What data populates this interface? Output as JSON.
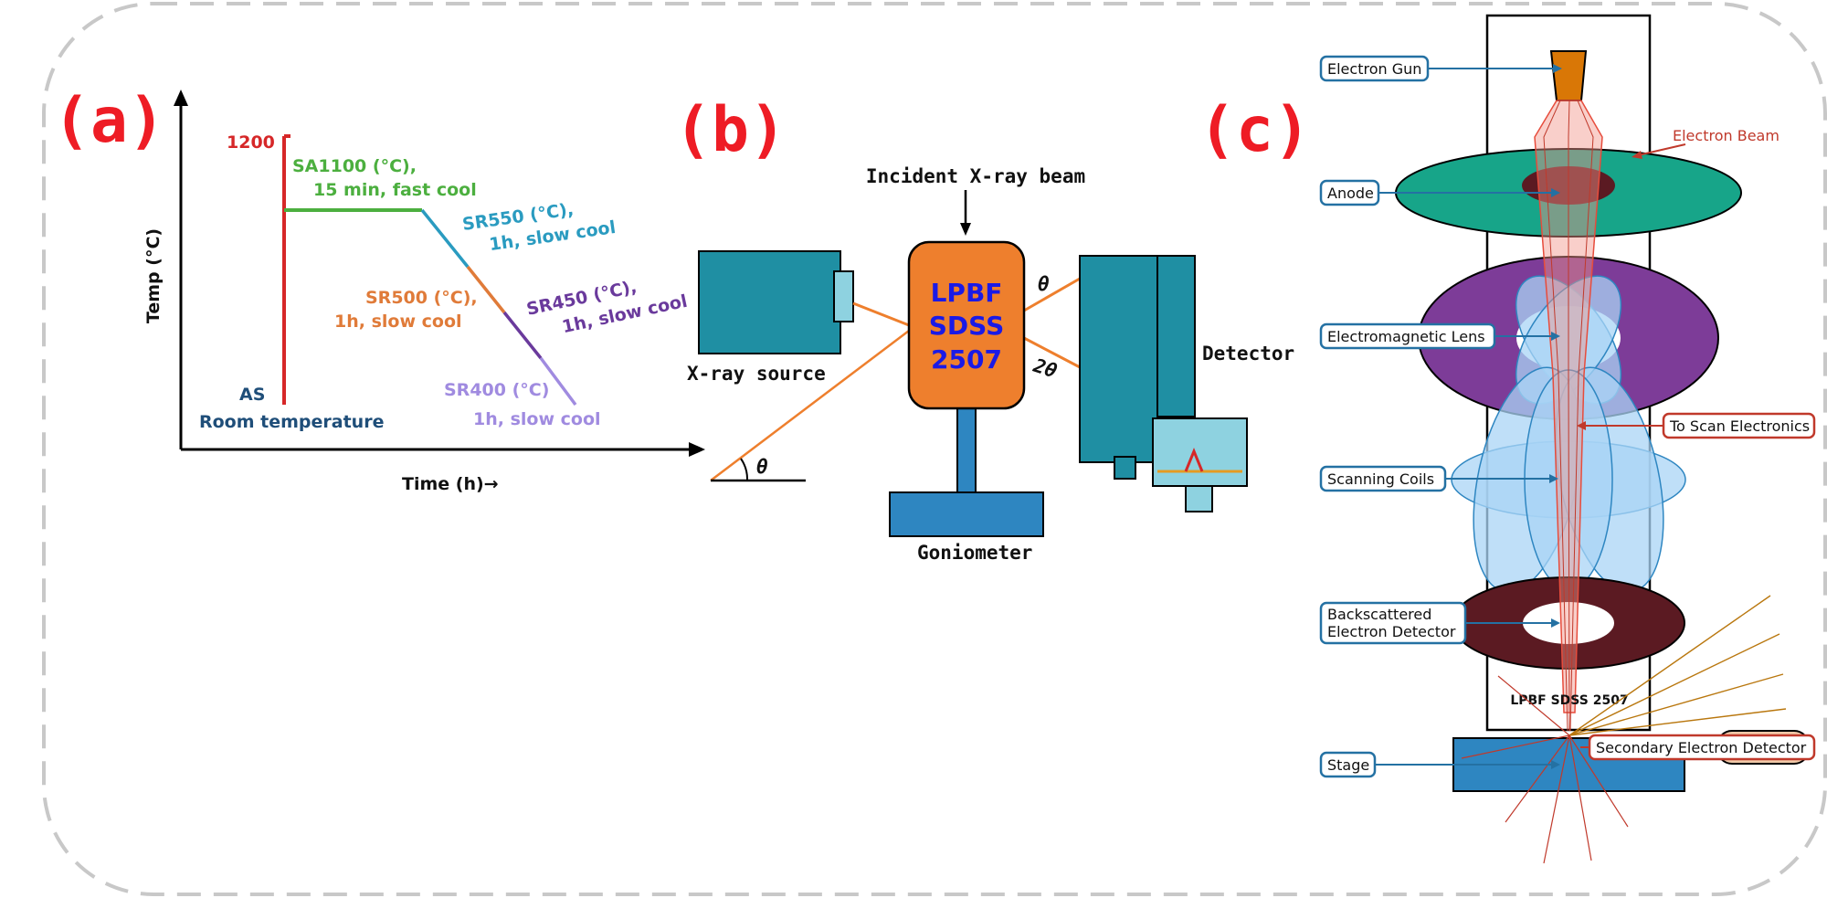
{
  "panels": [
    "(a)",
    "(b)",
    "(c)"
  ],
  "panel_a": {
    "ylabel": "Temp (°C)",
    "xlabel": "Time (h)→",
    "temp_tick": "1200",
    "stages": [
      {
        "line1": "SA1100 (°C),",
        "line2": "15 min, fast cool",
        "color": "#4caf3f"
      },
      {
        "line1": "SR550 (°C),",
        "line2": "1h, slow cool",
        "color": "#2a9bc0"
      },
      {
        "line1": "SR500 (°C),",
        "line2": "1h, slow cool",
        "color": "#e07b39"
      },
      {
        "line1": "SR450 (°C),",
        "line2": "1h, slow cool",
        "color": "#6a3a9c"
      },
      {
        "line1": "SR400 (°C)",
        "line2": "1h, slow cool",
        "color": "#a08be0"
      }
    ],
    "as_label": "AS",
    "room_label": "Room temperature"
  },
  "panel_b": {
    "incident": "Incident X-ray beam",
    "sample_lines": [
      "LPBF",
      "SDSS",
      "2507"
    ],
    "theta": "θ",
    "two_theta": "2θ",
    "source": "X-ray source",
    "detector": "Detector",
    "goniometer": "Goniometer",
    "angle_theta": "θ",
    "colors": {
      "teal": "#1f8fa3",
      "orange": "#ee7f2d",
      "blue": "#2e86c1",
      "light": "#8ed2e0",
      "sample_text": "#1a1ae6"
    }
  },
  "panel_c": {
    "labels_left": [
      {
        "text": "Electron Gun"
      },
      {
        "text": "Anode"
      },
      {
        "text": "Electromagnetic Lens"
      },
      {
        "text": "Scanning Coils"
      },
      {
        "text": "Backscattered",
        "text2": "Electron Detector"
      },
      {
        "text": "Stage"
      }
    ],
    "electron_beam": "Electron Beam",
    "scan_electronics": "To Scan Electronics",
    "secondary": "Secondary Electron Detector",
    "sample": "LPBF SDSS 2507",
    "colors": {
      "gun": "#d97706",
      "anode": "#17a589",
      "lens": "#7d3c98",
      "coil": "#a9d4f5",
      "bse": "#5b1a22",
      "stage": "#2e86c1",
      "beam": "#f1948a"
    }
  }
}
